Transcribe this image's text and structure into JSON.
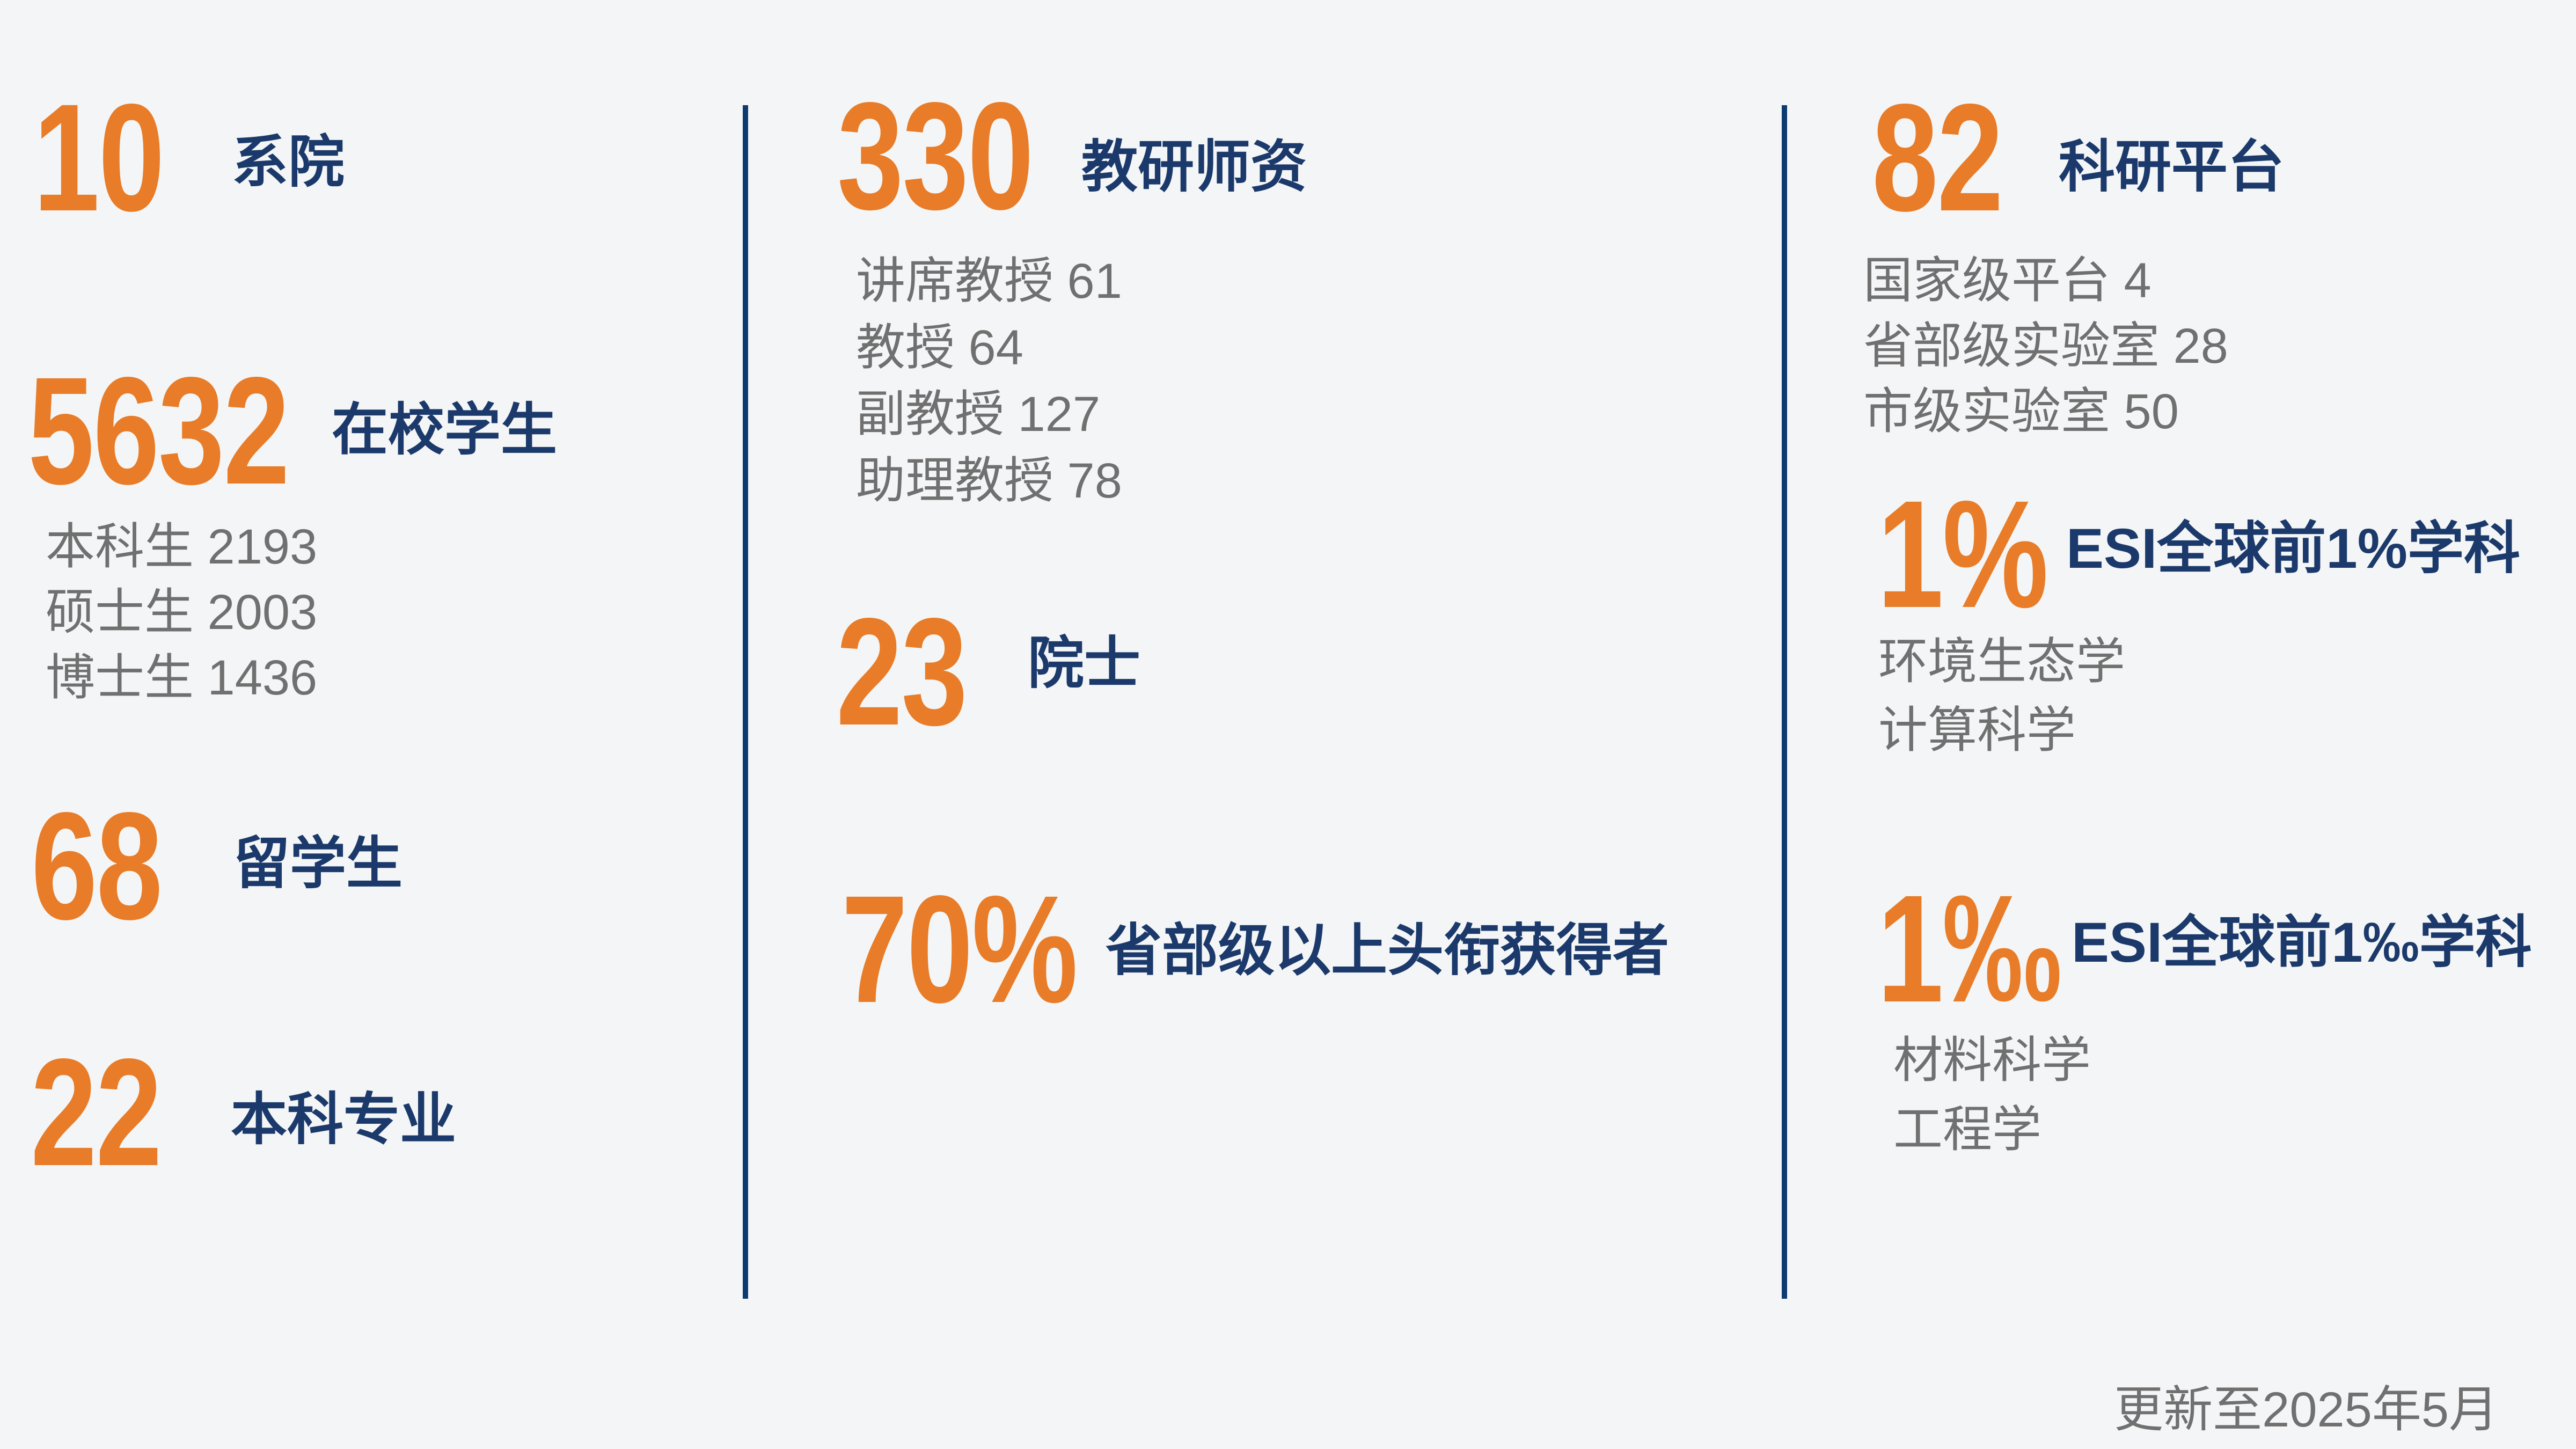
{
  "colors": {
    "background": "#f4f5f6",
    "accent_orange": "#e87c28",
    "navy": "#1b3a6b",
    "divider_blue": "#0c3b72",
    "muted_gray": "#707070"
  },
  "columns": [
    {
      "stats": [
        {
          "value": "10",
          "label": "系院",
          "subitems": []
        },
        {
          "value": "5632",
          "label": "在校学生",
          "subitems": [
            "本科生 2193",
            "硕士生 2003",
            "博士生 1436"
          ]
        },
        {
          "value": "68",
          "label": "留学生",
          "subitems": []
        },
        {
          "value": "22",
          "label": "本科专业",
          "subitems": []
        }
      ]
    },
    {
      "stats": [
        {
          "value": "330",
          "label": "教研师资",
          "subitems": [
            "讲席教授 61",
            "教授 64",
            "副教授 127",
            "助理教授 78"
          ]
        },
        {
          "value": "23",
          "label": "院士",
          "subitems": []
        },
        {
          "value": "70%",
          "label": "省部级以上头衔获得者",
          "subitems": []
        }
      ]
    },
    {
      "stats": [
        {
          "value": "82",
          "label": "科研平台",
          "subitems": [
            "国家级平台 4",
            "省部级实验室 28",
            "市级实验室 50"
          ]
        },
        {
          "value": "1%",
          "label": "ESI全球前1%学科",
          "subitems": [
            "环境生态学",
            "计算科学"
          ]
        },
        {
          "value": "1‰",
          "label": "ESI全球前1‰学科",
          "subitems": [
            "材料科学",
            "工程学"
          ]
        }
      ]
    }
  ],
  "footer": {
    "updated": "更新至2025年5月"
  },
  "chart_data": {
    "type": "table",
    "groups": [
      {
        "label": "系院",
        "value": 10
      },
      {
        "label": "在校学生",
        "value": 5632,
        "breakdown": [
          {
            "label": "本科生",
            "value": 2193
          },
          {
            "label": "硕士生",
            "value": 2003
          },
          {
            "label": "博士生",
            "value": 1436
          }
        ]
      },
      {
        "label": "留学生",
        "value": 68
      },
      {
        "label": "本科专业",
        "value": 22
      },
      {
        "label": "教研师资",
        "value": 330,
        "breakdown": [
          {
            "label": "讲席教授",
            "value": 61
          },
          {
            "label": "教授",
            "value": 64
          },
          {
            "label": "副教授",
            "value": 127
          },
          {
            "label": "助理教授",
            "value": 78
          }
        ]
      },
      {
        "label": "院士",
        "value": 23
      },
      {
        "label": "省部级以上头衔获得者",
        "value": "70%"
      },
      {
        "label": "科研平台",
        "value": 82,
        "breakdown": [
          {
            "label": "国家级平台",
            "value": 4
          },
          {
            "label": "省部级实验室",
            "value": 28
          },
          {
            "label": "市级实验室",
            "value": 50
          }
        ]
      },
      {
        "label": "ESI全球前1%学科",
        "value": "1%",
        "breakdown": [
          {
            "label": "环境生态学"
          },
          {
            "label": "计算科学"
          }
        ]
      },
      {
        "label": "ESI全球前1‰学科",
        "value": "1‰",
        "breakdown": [
          {
            "label": "材料科学"
          },
          {
            "label": "工程学"
          }
        ]
      }
    ],
    "note": "更新至2025年5月"
  }
}
